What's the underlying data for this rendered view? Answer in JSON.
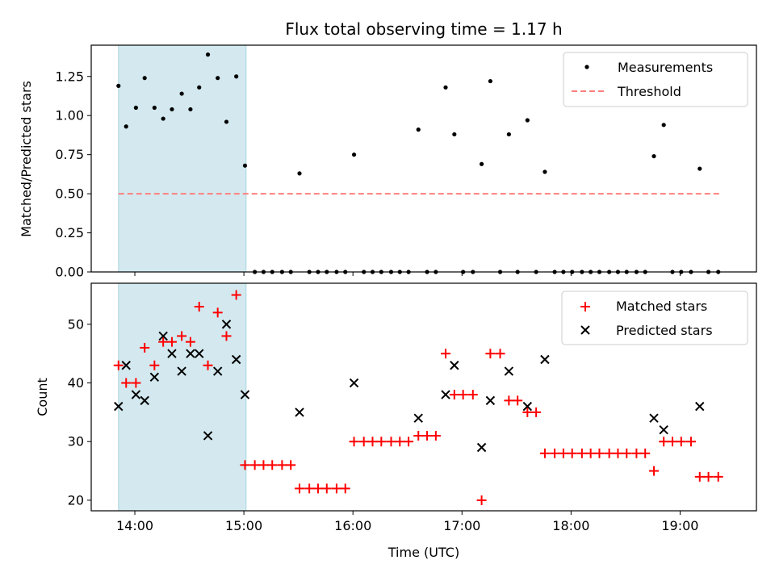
{
  "chart_data": [
    {
      "type": "scatter",
      "title": "Flux total observing time = 1.17 h",
      "xlabel": "",
      "ylabel": "Matched/Predicted stars",
      "ylim": [
        0,
        1.45
      ],
      "yticks": [
        "0.00",
        "0.25",
        "0.50",
        "0.75",
        "1.00",
        "1.25"
      ],
      "ytick_values": [
        0,
        0.25,
        0.5,
        0.75,
        1.0,
        1.25
      ],
      "legend_position": "top-right",
      "shaded_region": {
        "x_start": 13.85,
        "x_end": 15.02,
        "color": "#d3e9ef"
      },
      "series": [
        {
          "name": "Measurements",
          "marker": "dot",
          "color": "#000000",
          "x": [
            13.85,
            13.92,
            14.01,
            14.09,
            14.18,
            14.26,
            14.34,
            14.43,
            14.51,
            14.59,
            14.67,
            14.76,
            14.84,
            14.93,
            15.01,
            15.1,
            15.18,
            15.26,
            15.35,
            15.43,
            15.51,
            15.6,
            15.68,
            15.76,
            15.85,
            15.93,
            16.01,
            16.1,
            16.18,
            16.26,
            16.35,
            16.43,
            16.51,
            16.6,
            16.68,
            16.76,
            16.85,
            16.93,
            17.01,
            17.1,
            17.18,
            17.26,
            17.35,
            17.43,
            17.51,
            17.6,
            17.68,
            17.76,
            17.85,
            17.93,
            18.01,
            18.1,
            18.18,
            18.26,
            18.35,
            18.43,
            18.51,
            18.6,
            18.68,
            18.76,
            18.85,
            18.93,
            19.01,
            19.1,
            19.18,
            19.26,
            19.35
          ],
          "y": [
            1.19,
            0.93,
            1.05,
            1.24,
            1.05,
            0.98,
            1.04,
            1.14,
            1.04,
            1.18,
            1.39,
            1.24,
            0.96,
            1.25,
            0.68,
            0,
            0,
            0,
            0,
            0,
            0.63,
            0,
            0,
            0,
            0,
            0,
            0.75,
            0,
            0,
            0,
            0,
            0,
            0,
            0.91,
            0,
            0,
            1.18,
            0.88,
            0,
            0,
            0.69,
            1.22,
            0,
            0.88,
            0,
            0.97,
            0,
            0.64,
            0,
            0,
            0,
            0,
            0,
            0,
            0,
            0,
            0,
            0,
            0,
            0.74,
            0.94,
            0,
            0,
            0,
            0.66,
            0,
            0
          ]
        },
        {
          "name": "Threshold",
          "marker": "dashed-line",
          "color": "#ff7f7f",
          "x": [
            13.85,
            19.38
          ],
          "y": [
            0.5,
            0.5
          ]
        }
      ]
    },
    {
      "type": "scatter",
      "title": "",
      "xlabel": "Time (UTC)",
      "ylabel": "Count",
      "ylim": [
        18.2,
        57
      ],
      "xlim": [
        13.6,
        19.7
      ],
      "yticks": [
        "20",
        "30",
        "40",
        "50"
      ],
      "ytick_values": [
        20,
        30,
        40,
        50
      ],
      "xticks": [
        "14:00",
        "15:00",
        "16:00",
        "17:00",
        "18:00",
        "19:00"
      ],
      "xtick_values": [
        14,
        15,
        16,
        17,
        18,
        19
      ],
      "legend_position": "top-right",
      "shaded_region": {
        "x_start": 13.85,
        "x_end": 15.02,
        "color": "#d3e9ef"
      },
      "series": [
        {
          "name": "Matched stars",
          "marker": "plus",
          "color": "#ff0000",
          "x": [
            13.85,
            13.92,
            14.01,
            14.09,
            14.18,
            14.26,
            14.34,
            14.43,
            14.51,
            14.59,
            14.67,
            14.76,
            14.84,
            14.93,
            15.01,
            15.1,
            15.18,
            15.26,
            15.35,
            15.43,
            15.51,
            15.6,
            15.68,
            15.76,
            15.85,
            15.93,
            16.01,
            16.1,
            16.18,
            16.26,
            16.35,
            16.43,
            16.51,
            16.6,
            16.68,
            16.76,
            16.85,
            16.93,
            17.01,
            17.1,
            17.18,
            17.26,
            17.35,
            17.43,
            17.51,
            17.6,
            17.68,
            17.76,
            17.85,
            17.93,
            18.01,
            18.1,
            18.18,
            18.26,
            18.35,
            18.43,
            18.51,
            18.6,
            18.68,
            18.76,
            18.85,
            18.93,
            19.01,
            19.1,
            19.18,
            19.26,
            19.35
          ],
          "y": [
            43,
            40,
            40,
            46,
            43,
            47,
            47,
            48,
            47,
            53,
            43,
            52,
            48,
            55,
            26,
            26,
            26,
            26,
            26,
            26,
            22,
            22,
            22,
            22,
            22,
            22,
            30,
            30,
            30,
            30,
            30,
            30,
            30,
            31,
            31,
            31,
            45,
            38,
            38,
            38,
            20,
            45,
            45,
            37,
            37,
            35,
            35,
            28,
            28,
            28,
            28,
            28,
            28,
            28,
            28,
            28,
            28,
            28,
            28,
            25,
            30,
            30,
            30,
            30,
            24,
            24,
            24
          ]
        },
        {
          "name": "Predicted stars",
          "marker": "x",
          "color": "#000000",
          "x": [
            13.85,
            13.92,
            14.01,
            14.09,
            14.18,
            14.26,
            14.34,
            14.43,
            14.51,
            14.59,
            14.67,
            14.76,
            14.84,
            14.93,
            15.01,
            15.51,
            16.01,
            16.6,
            16.85,
            16.93,
            17.18,
            17.26,
            17.43,
            17.6,
            17.76,
            18.76,
            18.85,
            19.18
          ],
          "y": [
            36,
            43,
            38,
            37,
            41,
            48,
            45,
            42,
            45,
            45,
            31,
            42,
            50,
            44,
            38,
            35,
            40,
            34,
            38,
            43,
            29,
            37,
            42,
            36,
            44,
            34,
            32,
            36
          ]
        }
      ]
    }
  ]
}
